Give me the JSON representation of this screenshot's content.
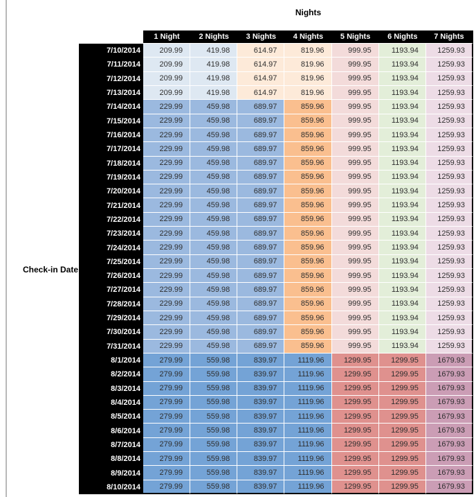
{
  "page": {
    "title": "Nights",
    "axis_label": "Check-in Date"
  },
  "table": {
    "columns": [
      "1 Night",
      "2 Nights",
      "3 Nights",
      "4 Nights",
      "5 Nights",
      "6 Nights",
      "7 Nights"
    ],
    "palette": {
      "pale_blue": "#dee8f2",
      "pale_tan": "#fdead9",
      "pale_red": "#f3dbda",
      "pale_green": "#e3eed9",
      "pale_pink": "#eddce6",
      "med_blue": "#9bb9df",
      "med_orange": "#fabf8f",
      "dark_blue": "#74a3d6",
      "med_red": "#df918e",
      "mauve": "#cb9db5",
      "header_bg": "#000000",
      "header_text": "#ffffff",
      "price_text": "#2e2e2e",
      "grid_line": "#ffffff",
      "outer_border": "#000000"
    },
    "groups": [
      {
        "dates": [
          "7/10/2014",
          "7/11/2014",
          "7/12/2014",
          "7/13/2014"
        ],
        "values": [
          "209.99",
          "419.98",
          "614.97",
          "819.96",
          "999.95",
          "1193.94",
          "1259.93"
        ],
        "cell_colors": [
          "pale_blue",
          "pale_blue",
          "pale_tan",
          "pale_tan",
          "pale_red",
          "pale_green",
          "pale_pink"
        ]
      },
      {
        "dates": [
          "7/14/2014",
          "7/15/2014",
          "7/16/2014",
          "7/17/2014",
          "7/18/2014",
          "7/19/2014",
          "7/20/2014",
          "7/21/2014",
          "7/22/2014",
          "7/23/2014",
          "7/24/2014",
          "7/25/2014",
          "7/26/2014",
          "7/27/2014",
          "7/28/2014",
          "7/29/2014",
          "7/30/2014",
          "7/31/2014"
        ],
        "values": [
          "229.99",
          "459.98",
          "689.97",
          "859.96",
          "999.95",
          "1193.94",
          "1259.93"
        ],
        "cell_colors": [
          "med_blue",
          "med_blue",
          "med_blue",
          "med_orange",
          "pale_red",
          "pale_green",
          "pale_pink"
        ]
      },
      {
        "dates": [
          "8/1/2014",
          "8/2/2014",
          "8/3/2014",
          "8/4/2014",
          "8/5/2014",
          "8/6/2014",
          "8/7/2014",
          "8/8/2014",
          "8/9/2014",
          "8/10/2014"
        ],
        "values": [
          "279.99",
          "559.98",
          "839.97",
          "1119.96",
          "1299.95",
          "1299.95",
          "1679.93"
        ],
        "cell_colors": [
          "dark_blue",
          "dark_blue",
          "dark_blue",
          "dark_blue",
          "med_red",
          "med_red",
          "mauve"
        ]
      }
    ]
  }
}
